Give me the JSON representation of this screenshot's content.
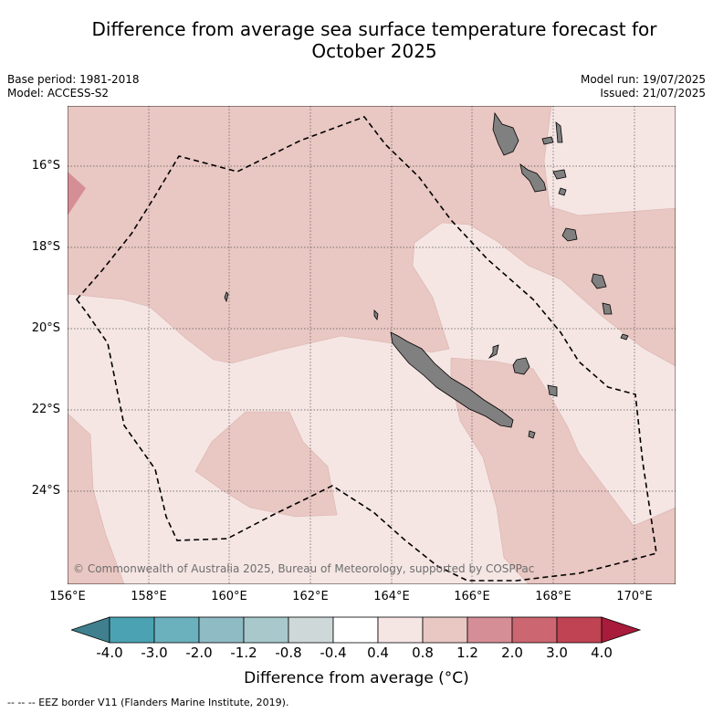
{
  "title_line1": "Difference from average sea surface temperature forecast for",
  "title_line2": "October 2025",
  "base_period": "Base period: 1981-2018",
  "model": "Model: ACCESS-S2",
  "model_run": "Model run: 19/07/2025",
  "issued": "Issued: 21/07/2025",
  "copyright": "© Commonwealth of Australia 2025, Bureau of Meteorology, supported by COSPPac",
  "lat_labels": [
    "16°S",
    "18°S",
    "20°S",
    "22°S",
    "24°S"
  ],
  "lon_labels": [
    "156°E",
    "158°E",
    "160°E",
    "162°E",
    "164°E",
    "166°E",
    "168°E",
    "170°E"
  ],
  "colorbar": {
    "label": "Difference from average (°C)",
    "ticks": [
      "-4.0",
      "-3.0",
      "-2.0",
      "-1.2",
      "-0.8",
      "-0.4",
      "0.4",
      "0.8",
      "1.2",
      "2.0",
      "3.0",
      "4.0"
    ],
    "colors": [
      "#3f7f8e",
      "#4aa2b2",
      "#6bb0bd",
      "#8fbbc5",
      "#a8c8cc",
      "#cfd8d9",
      "#ffffff",
      "#f5e6e4",
      "#e9c7c2",
      "#d68e96",
      "#cc6671",
      "#bf4352",
      "#a81b3a"
    ]
  },
  "footnote": "--  --  -- EEZ border V11 (Flanders Marine Institute, 2019).",
  "colors": {
    "band_04_08": "#f5e6e4",
    "band_08_12": "#e9c7c2",
    "band_12_20": "#d68e96",
    "land": "#808080"
  }
}
